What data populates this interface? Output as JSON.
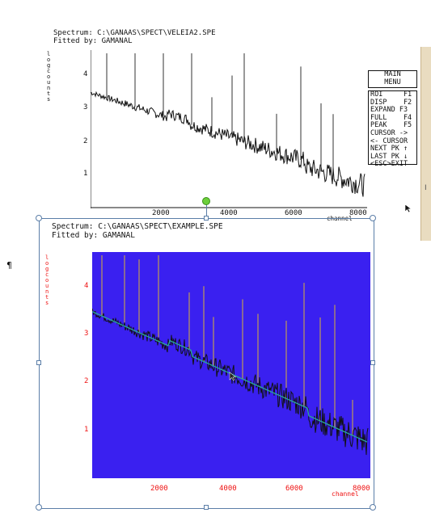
{
  "top": {
    "spectrum_line": "Spectrum: C:\\GANAAS\\SPECT\\VELEIA2.SPE",
    "fitted_line": "Fitted by: GAMANAL",
    "ylabel": "log counts",
    "y_ticks": [
      "4",
      "3",
      "2",
      "1"
    ],
    "x_ticks": [
      "2000",
      "4000",
      "6000",
      "8000"
    ],
    "xlabel": "channel"
  },
  "menu": {
    "title_line1": "MAIN",
    "title_line2": "MENU",
    "items": [
      "ROI     F1",
      "DISP    F2",
      "EXPAND F3",
      "FULL    F4",
      "PEAK    F5",
      "CURSOR ->",
      "<- CURSOR",
      "NEXT PK ↑",
      "LAST PK ↓",
      "<ESC>EXIT"
    ]
  },
  "bottom": {
    "spectrum_line": "Spectrum: C:\\GANAAS\\SPECT\\EXAMPLE.SPE",
    "fitted_line": "Fitted by: GAMANAL",
    "ylabel": "log counts",
    "y_ticks": [
      "4",
      "3",
      "2",
      "1"
    ],
    "x_ticks": [
      "2000",
      "4000",
      "6000",
      "8000"
    ],
    "xlabel": "channel"
  },
  "paragraph_mark": "¶",
  "side_letter": "I",
  "colors": {
    "plot_bg_bottom": "#3a20f0",
    "trace": "#111111",
    "fit": "#2aa89a",
    "peaks": "#d8b23a",
    "axis_labels_bottom": "#e11111",
    "selection": "#5b7ea8",
    "rotate_handle": "#6ccf3a",
    "side_panel": "#e9dcc0"
  }
}
